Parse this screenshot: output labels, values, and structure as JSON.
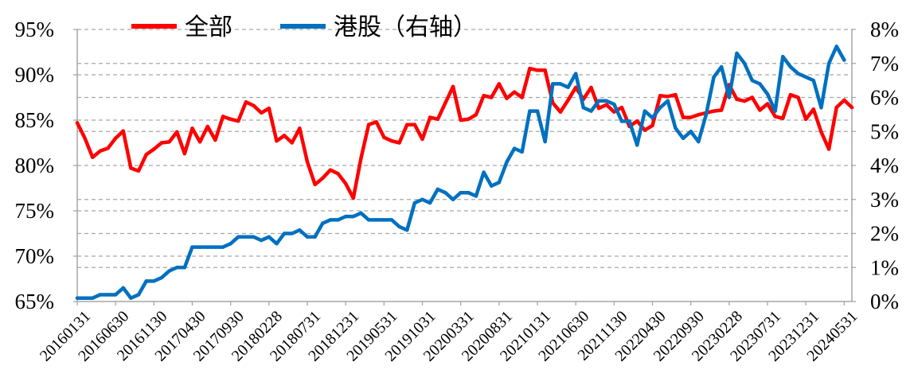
{
  "chart_data": {
    "type": "line",
    "title": "",
    "xlabel": "",
    "ylabel": "",
    "y_left": {
      "lim": [
        65,
        95
      ],
      "ticks": [
        "65%",
        "70%",
        "75%",
        "80%",
        "85%",
        "90%",
        "95%"
      ]
    },
    "y_right": {
      "lim": [
        0,
        8
      ],
      "ticks": [
        "0%",
        "1%",
        "2%",
        "3%",
        "4%",
        "5%",
        "6%",
        "7%",
        "8%"
      ]
    },
    "x_ticks": [
      "20160131",
      "20160630",
      "20161130",
      "20170430",
      "20170930",
      "20180228",
      "20180731",
      "20181231",
      "20190531",
      "20191031",
      "20200331",
      "20200831",
      "20210131",
      "20210630",
      "20211130",
      "20220430",
      "20220930",
      "20230228",
      "20230731",
      "20231231",
      "20240531"
    ],
    "grid": "horizontal dashed",
    "legend_position": "top",
    "colors": {
      "全部": "#ff0000",
      "港股（右轴）": "#0070c0"
    },
    "series": [
      {
        "name": "全部",
        "axis": "left",
        "values": [
          84.7,
          83.0,
          80.9,
          81.6,
          81.9,
          83.0,
          83.8,
          79.7,
          79.4,
          81.2,
          81.8,
          82.5,
          82.6,
          83.7,
          81.3,
          84.1,
          82.6,
          84.3,
          82.8,
          85.4,
          85.1,
          84.9,
          87.0,
          86.6,
          85.8,
          86.3,
          82.7,
          83.3,
          82.5,
          84.1,
          80.4,
          77.9,
          78.6,
          79.5,
          79.1,
          78.0,
          76.4,
          80.8,
          84.5,
          84.8,
          83.1,
          82.7,
          82.5,
          84.5,
          84.5,
          82.9,
          85.3,
          85.1,
          86.9,
          88.7,
          85.0,
          85.1,
          85.6,
          87.7,
          87.5,
          89.0,
          87.4,
          88.1,
          87.5,
          90.7,
          90.5,
          90.5,
          86.9,
          85.9,
          87.2,
          88.6,
          87.3,
          88.6,
          86.3,
          86.7,
          85.9,
          86.4,
          84.3,
          84.9,
          83.9,
          84.4,
          87.7,
          87.6,
          87.8,
          85.3,
          85.3,
          85.6,
          85.8,
          86.0,
          86.1,
          88.9,
          87.3,
          87.1,
          87.5,
          86.1,
          86.8,
          85.4,
          85.2,
          87.8,
          87.5,
          85.1,
          86.2,
          83.7,
          81.8,
          86.4,
          87.2,
          86.4
        ]
      },
      {
        "name": "港股（右轴）",
        "axis": "right",
        "values": [
          0.1,
          0.1,
          0.1,
          0.2,
          0.2,
          0.2,
          0.4,
          0.1,
          0.2,
          0.6,
          0.6,
          0.7,
          0.9,
          1.0,
          1.0,
          1.6,
          1.6,
          1.6,
          1.6,
          1.6,
          1.7,
          1.9,
          1.9,
          1.9,
          1.8,
          1.9,
          1.7,
          2.0,
          2.0,
          2.1,
          1.9,
          1.9,
          2.3,
          2.4,
          2.4,
          2.5,
          2.5,
          2.6,
          2.4,
          2.4,
          2.4,
          2.4,
          2.2,
          2.1,
          2.9,
          3.0,
          2.9,
          3.3,
          3.2,
          3.0,
          3.2,
          3.2,
          3.1,
          3.8,
          3.4,
          3.5,
          4.1,
          4.5,
          4.4,
          5.6,
          5.6,
          4.7,
          6.4,
          6.4,
          6.3,
          6.7,
          5.7,
          5.6,
          5.9,
          5.9,
          5.8,
          5.3,
          5.3,
          4.6,
          5.6,
          5.4,
          5.7,
          5.9,
          5.1,
          4.8,
          5.0,
          4.7,
          5.5,
          6.6,
          6.9,
          6.0,
          7.3,
          7.0,
          6.5,
          6.4,
          6.1,
          5.6,
          7.2,
          6.9,
          6.7,
          6.6,
          6.5,
          5.7,
          7.0,
          7.5,
          7.1
        ]
      }
    ]
  }
}
